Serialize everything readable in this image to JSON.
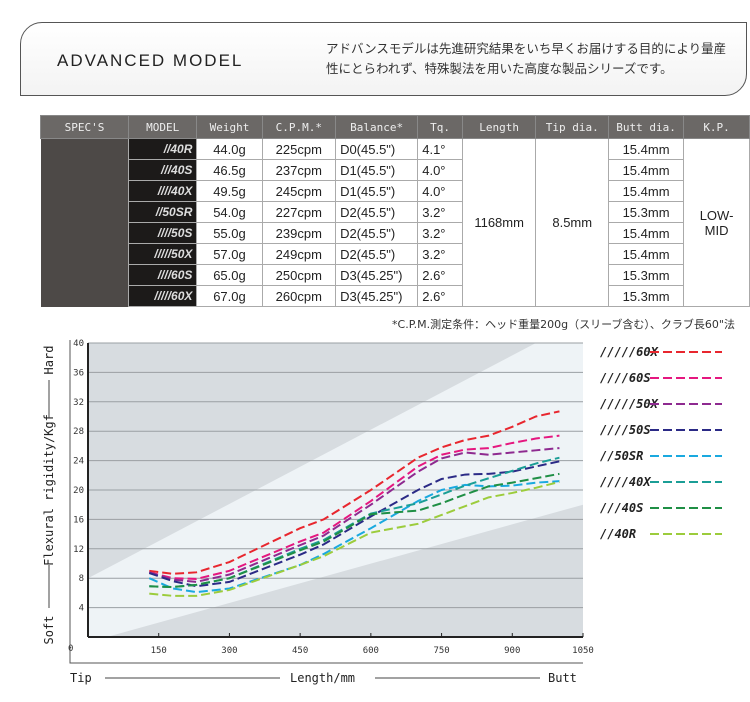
{
  "banner": {
    "title": "ADVANCED MODEL",
    "description": "アドバンスモデルは先進研究結果をいち早くお届けする目的により量産性にとらわれず、特殊製法を用いた高度な製品シリーズです。"
  },
  "table": {
    "headers": [
      "SPEC'S",
      "MODEL",
      "Weight",
      "C.P.M.*",
      "Balance*",
      "Tq.",
      "Length",
      "Tip dia.",
      "Butt dia.",
      "K.P."
    ],
    "rows": [
      [
        "//40R",
        "44.0g",
        "225cpm",
        "D0(45.5\")",
        "4.1°",
        "15.4mm"
      ],
      [
        "///40S",
        "46.5g",
        "237cpm",
        "D1(45.5\")",
        "4.0°",
        "15.4mm"
      ],
      [
        "////40X",
        "49.5g",
        "245cpm",
        "D1(45.5\")",
        "4.0°",
        "15.4mm"
      ],
      [
        "//50SR",
        "54.0g",
        "227cpm",
        "D2(45.5\")",
        "3.2°",
        "15.3mm"
      ],
      [
        "////50S",
        "55.0g",
        "239cpm",
        "D2(45.5\")",
        "3.2°",
        "15.4mm"
      ],
      [
        "/////50X",
        "57.0g",
        "249cpm",
        "D2(45.5\")",
        "3.2°",
        "15.4mm"
      ],
      [
        "////60S",
        "65.0g",
        "250cpm",
        "D3(45.25\")",
        "2.6°",
        "15.3mm"
      ],
      [
        "/////60X",
        "67.0g",
        "260cpm",
        "D3(45.25\")",
        "2.6°",
        "15.3mm"
      ]
    ],
    "length": "1168mm",
    "tip_dia": "8.5mm",
    "kp": "LOW-MID",
    "note": "*C.P.M.測定条件：ヘッド重量200g（スリーブ含む）、クラブ長60\"法"
  },
  "chart_data": {
    "type": "line",
    "xlabel": "Length/mm",
    "x_left_label": "Tip",
    "x_right_label": "Butt",
    "ylabel": "Flexural rigidity/Kgf",
    "y_bottom_label": "Soft",
    "y_top_label": "Hard",
    "xlim": [
      0,
      1050
    ],
    "ylim": [
      0,
      40
    ],
    "xticks": [
      0,
      150,
      300,
      450,
      600,
      750,
      900,
      1050
    ],
    "yticks": [
      4,
      8,
      12,
      16,
      20,
      24,
      28,
      32,
      36,
      40
    ],
    "x": [
      130,
      180,
      230,
      300,
      450,
      500,
      600,
      700,
      750,
      800,
      850,
      900,
      950,
      1000
    ],
    "series": [
      {
        "name": "/////60X",
        "color": "#e8262e",
        "values": [
          9.0,
          8.6,
          8.8,
          10.2,
          14.8,
          16.0,
          20.0,
          24.4,
          25.8,
          26.8,
          27.4,
          28.6,
          30.0,
          30.7
        ]
      },
      {
        "name": "////60S",
        "color": "#e5177f",
        "values": [
          8.8,
          8.0,
          7.9,
          9.0,
          13.0,
          14.2,
          18.5,
          23.2,
          24.8,
          25.5,
          25.7,
          26.4,
          27.0,
          27.4
        ]
      },
      {
        "name": "/////50X",
        "color": "#8e2a90",
        "values": [
          8.8,
          7.8,
          7.5,
          8.5,
          12.5,
          13.8,
          18.0,
          22.5,
          24.3,
          25.1,
          24.8,
          25.1,
          25.4,
          25.7
        ]
      },
      {
        "name": "////50S",
        "color": "#2b2a86",
        "values": [
          8.7,
          7.6,
          6.9,
          7.5,
          11.2,
          12.6,
          16.4,
          20.0,
          21.5,
          22.1,
          22.2,
          22.5,
          23.2,
          23.9
        ]
      },
      {
        "name": "//50SR",
        "color": "#1aa9df",
        "values": [
          8.0,
          6.6,
          6.1,
          6.6,
          9.8,
          11.3,
          14.8,
          18.5,
          20.0,
          20.7,
          20.5,
          20.6,
          21.0,
          21.2
        ]
      },
      {
        "name": "////40X",
        "color": "#1b9e96",
        "values": [
          6.9,
          6.8,
          7.1,
          8.0,
          12.0,
          13.2,
          16.8,
          18.2,
          19.4,
          20.6,
          21.6,
          22.6,
          23.6,
          24.4
        ]
      },
      {
        "name": "///40S",
        "color": "#1f8f45",
        "values": [
          6.9,
          6.8,
          7.1,
          8.0,
          11.8,
          13.0,
          16.7,
          17.2,
          18.2,
          19.4,
          20.5,
          21.0,
          21.6,
          22.2
        ]
      },
      {
        "name": "//40R",
        "color": "#9ccc3c",
        "values": [
          5.9,
          5.6,
          5.6,
          6.4,
          9.8,
          11.0,
          14.2,
          15.4,
          16.6,
          17.8,
          19.0,
          19.6,
          20.3,
          21.1
        ]
      }
    ]
  }
}
